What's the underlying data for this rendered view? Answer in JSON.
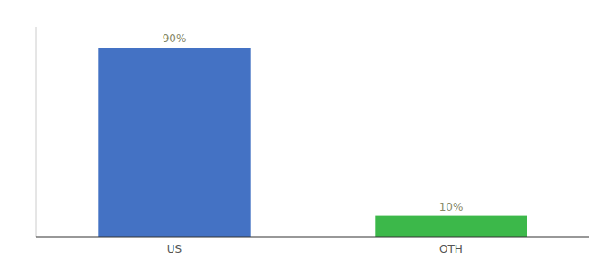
{
  "chart_data": {
    "type": "bar",
    "categories": [
      "US",
      "OTH"
    ],
    "values": [
      90,
      10
    ],
    "value_labels": [
      "90%",
      "10%"
    ],
    "data_labels": true,
    "colors": [
      "#4472c4",
      "#3cb84a"
    ],
    "ylim": [
      0,
      100
    ],
    "tick_labels": "x",
    "grid": false
  }
}
